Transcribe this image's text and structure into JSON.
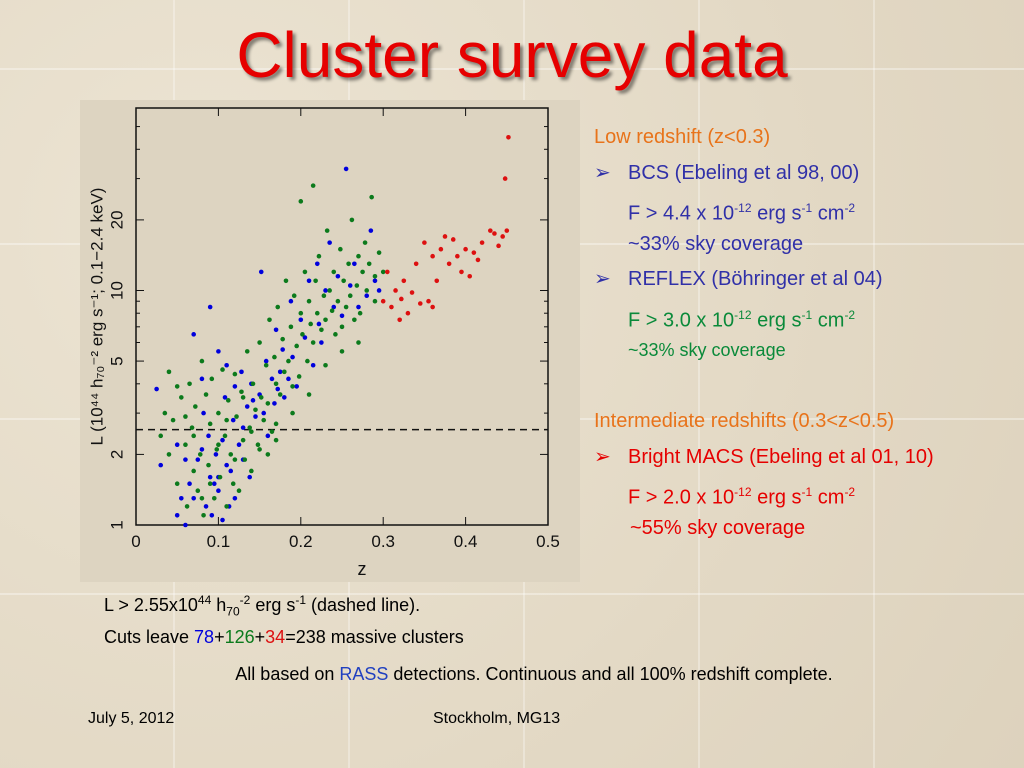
{
  "title": "Cluster survey data",
  "text": {
    "low_heading": "Low redshift (z<0.3)",
    "bcs_label": "BCS (Ebeling et al 98, 00)",
    "bcs_flux_prefix": "F > 4.4 x 10",
    "bcs_flux_exp": "-12",
    "bcs_coverage": "~33% sky coverage",
    "reflex_label": "REFLEX (Böhringer et al 04)",
    "reflex_flux_prefix": "F > 3.0 x 10",
    "reflex_flux_exp": "-12",
    "reflex_coverage": "~33% sky coverage",
    "inter_heading": "Intermediate redshifts (0.3<z<0.5)",
    "macs_label": "Bright MACS (Ebeling et al 01, 10)",
    "macs_flux_prefix": "F > 2.0 x 10",
    "macs_flux_exp": "-12",
    "macs_coverage": "~55% sky coverage",
    "flux_units": " erg s",
    "flux_units_exp1": "-1",
    "flux_units_cm": " cm",
    "flux_units_exp2": "-2",
    "bullet": "➢"
  },
  "caption": {
    "l_prefix": "L > 2.55x10",
    "l_exp": "44",
    "l_h": " h",
    "l_h_sub": "70",
    "l_h_exp": "-2",
    "l_units": " erg s",
    "l_units_exp": "-1",
    "l_suffix": " (dashed line).",
    "cuts_prefix": "Cuts leave ",
    "n_blue": "78",
    "plus1": "+",
    "n_green": "126",
    "plus2": "+",
    "n_red": "34",
    "cuts_suffix": "=238 massive clusters"
  },
  "footnote": {
    "prefix": "All based on ",
    "rass": "RASS",
    "suffix": " detections. Continuous and all 100% redshift complete."
  },
  "footer": {
    "date": "July 5, 2012",
    "place": "Stockholm, MG13"
  },
  "colors": {
    "blue": "#0000dd",
    "green": "#0c7a1c",
    "red": "#dd1010",
    "title": "#e60000"
  },
  "chart_data": {
    "type": "scatter",
    "x_axis_label": "z",
    "y_axis_label": "L (10⁴⁴ h₇₀⁻² erg s⁻¹; 0.1−2.4 keV)",
    "x_ticks": [
      "0",
      "0.1",
      "0.2",
      "0.3",
      "0.4",
      "0.5"
    ],
    "y_ticks": [
      "1",
      "2",
      "5",
      "10",
      "20"
    ],
    "xlim": [
      0,
      0.5
    ],
    "ylim": [
      1,
      60
    ],
    "y_scale": "log",
    "threshold_line": 2.55,
    "series": [
      {
        "color": "#0000dd",
        "points": [
          [
            0.025,
            3.8
          ],
          [
            0.03,
            1.8
          ],
          [
            0.05,
            1.1
          ],
          [
            0.05,
            2.2
          ],
          [
            0.055,
            1.3
          ],
          [
            0.06,
            1.0
          ],
          [
            0.065,
            1.5
          ],
          [
            0.07,
            1.3
          ],
          [
            0.07,
            6.5
          ],
          [
            0.075,
            1.9
          ],
          [
            0.08,
            4.2
          ],
          [
            0.08,
            2.1
          ],
          [
            0.082,
            3.0
          ],
          [
            0.085,
            1.2
          ],
          [
            0.088,
            2.4
          ],
          [
            0.09,
            1.6
          ],
          [
            0.09,
            8.5
          ],
          [
            0.092,
            1.1
          ],
          [
            0.095,
            1.5
          ],
          [
            0.097,
            2.0
          ],
          [
            0.1,
            5.5
          ],
          [
            0.1,
            1.4
          ],
          [
            0.105,
            2.3
          ],
          [
            0.105,
            1.05
          ],
          [
            0.108,
            3.5
          ],
          [
            0.11,
            1.8
          ],
          [
            0.11,
            4.8
          ],
          [
            0.113,
            1.2
          ],
          [
            0.115,
            1.7
          ],
          [
            0.118,
            2.8
          ],
          [
            0.12,
            1.3
          ],
          [
            0.12,
            3.9
          ],
          [
            0.125,
            2.2
          ],
          [
            0.128,
            4.5
          ],
          [
            0.13,
            1.9
          ],
          [
            0.13,
            2.6
          ],
          [
            0.135,
            3.2
          ],
          [
            0.138,
            1.6
          ],
          [
            0.14,
            4.0
          ],
          [
            0.142,
            3.4
          ],
          [
            0.145,
            2.9
          ],
          [
            0.15,
            3.6
          ],
          [
            0.152,
            12
          ],
          [
            0.155,
            3.0
          ],
          [
            0.158,
            5.0
          ],
          [
            0.16,
            2.4
          ],
          [
            0.165,
            4.2
          ],
          [
            0.168,
            3.3
          ],
          [
            0.17,
            6.8
          ],
          [
            0.172,
            3.8
          ],
          [
            0.175,
            4.5
          ],
          [
            0.178,
            5.6
          ],
          [
            0.18,
            3.5
          ],
          [
            0.185,
            4.2
          ],
          [
            0.188,
            9.0
          ],
          [
            0.19,
            5.2
          ],
          [
            0.195,
            3.9
          ],
          [
            0.2,
            7.5
          ],
          [
            0.205,
            6.3
          ],
          [
            0.21,
            11
          ],
          [
            0.215,
            4.8
          ],
          [
            0.22,
            13
          ],
          [
            0.222,
            7.2
          ],
          [
            0.225,
            6.0
          ],
          [
            0.23,
            10
          ],
          [
            0.235,
            16
          ],
          [
            0.24,
            8.5
          ],
          [
            0.245,
            11.5
          ],
          [
            0.25,
            7.8
          ],
          [
            0.255,
            33
          ],
          [
            0.26,
            10.5
          ],
          [
            0.265,
            13
          ],
          [
            0.27,
            8.5
          ],
          [
            0.28,
            9.5
          ],
          [
            0.285,
            18
          ],
          [
            0.29,
            11
          ],
          [
            0.295,
            10
          ],
          [
            0.06,
            1.9
          ],
          [
            0.1,
            1.6
          ]
        ]
      },
      {
        "color": "#0c7a1c",
        "points": [
          [
            0.03,
            2.4
          ],
          [
            0.035,
            3.0
          ],
          [
            0.04,
            4.5
          ],
          [
            0.045,
            2.8
          ],
          [
            0.05,
            1.5
          ],
          [
            0.055,
            3.5
          ],
          [
            0.06,
            2.2
          ],
          [
            0.062,
            1.2
          ],
          [
            0.065,
            4.0
          ],
          [
            0.068,
            2.6
          ],
          [
            0.07,
            1.7
          ],
          [
            0.072,
            3.2
          ],
          [
            0.075,
            1.4
          ],
          [
            0.078,
            2.0
          ],
          [
            0.08,
            5.0
          ],
          [
            0.082,
            1.1
          ],
          [
            0.085,
            3.6
          ],
          [
            0.088,
            1.8
          ],
          [
            0.09,
            2.7
          ],
          [
            0.092,
            4.2
          ],
          [
            0.095,
            1.3
          ],
          [
            0.098,
            2.1
          ],
          [
            0.1,
            3.0
          ],
          [
            0.102,
            1.6
          ],
          [
            0.105,
            4.6
          ],
          [
            0.108,
            2.4
          ],
          [
            0.11,
            1.2
          ],
          [
            0.112,
            3.4
          ],
          [
            0.115,
            2.0
          ],
          [
            0.118,
            1.5
          ],
          [
            0.12,
            4.4
          ],
          [
            0.122,
            2.9
          ],
          [
            0.125,
            1.4
          ],
          [
            0.128,
            3.7
          ],
          [
            0.13,
            2.3
          ],
          [
            0.132,
            1.9
          ],
          [
            0.135,
            5.5
          ],
          [
            0.138,
            2.6
          ],
          [
            0.14,
            1.7
          ],
          [
            0.142,
            4.0
          ],
          [
            0.145,
            3.1
          ],
          [
            0.148,
            2.2
          ],
          [
            0.15,
            6.0
          ],
          [
            0.152,
            3.5
          ],
          [
            0.155,
            2.8
          ],
          [
            0.158,
            4.8
          ],
          [
            0.16,
            3.3
          ],
          [
            0.162,
            7.5
          ],
          [
            0.165,
            2.5
          ],
          [
            0.168,
            5.2
          ],
          [
            0.17,
            4.0
          ],
          [
            0.172,
            8.5
          ],
          [
            0.175,
            3.6
          ],
          [
            0.178,
            6.2
          ],
          [
            0.18,
            4.5
          ],
          [
            0.182,
            11
          ],
          [
            0.185,
            5.0
          ],
          [
            0.188,
            7.0
          ],
          [
            0.19,
            3.9
          ],
          [
            0.192,
            9.5
          ],
          [
            0.195,
            5.8
          ],
          [
            0.198,
            4.3
          ],
          [
            0.2,
            8.0
          ],
          [
            0.202,
            6.5
          ],
          [
            0.205,
            12
          ],
          [
            0.208,
            5.0
          ],
          [
            0.21,
            9.0
          ],
          [
            0.212,
            7.2
          ],
          [
            0.215,
            6.0
          ],
          [
            0.218,
            11
          ],
          [
            0.22,
            8.0
          ],
          [
            0.222,
            14
          ],
          [
            0.225,
            6.8
          ],
          [
            0.228,
            9.5
          ],
          [
            0.23,
            7.5
          ],
          [
            0.232,
            18
          ],
          [
            0.235,
            10
          ],
          [
            0.238,
            8.2
          ],
          [
            0.24,
            12
          ],
          [
            0.242,
            6.5
          ],
          [
            0.245,
            9.0
          ],
          [
            0.248,
            15
          ],
          [
            0.25,
            7.0
          ],
          [
            0.252,
            11
          ],
          [
            0.255,
            8.5
          ],
          [
            0.258,
            13
          ],
          [
            0.26,
            9.5
          ],
          [
            0.262,
            20
          ],
          [
            0.265,
            7.5
          ],
          [
            0.268,
            10.5
          ],
          [
            0.27,
            14
          ],
          [
            0.272,
            8.0
          ],
          [
            0.275,
            12
          ],
          [
            0.278,
            16
          ],
          [
            0.28,
            10
          ],
          [
            0.283,
            13
          ],
          [
            0.286,
            25
          ],
          [
            0.29,
            11.5
          ],
          [
            0.295,
            14.5
          ],
          [
            0.3,
            12
          ],
          [
            0.215,
            28
          ],
          [
            0.2,
            24
          ],
          [
            0.04,
            2.0
          ],
          [
            0.06,
            2.9
          ],
          [
            0.08,
            1.3
          ],
          [
            0.1,
            2.2
          ],
          [
            0.12,
            1.9
          ],
          [
            0.14,
            2.5
          ],
          [
            0.16,
            2.0
          ],
          [
            0.05,
            3.9
          ],
          [
            0.07,
            2.4
          ],
          [
            0.09,
            1.5
          ],
          [
            0.11,
            2.8
          ],
          [
            0.13,
            3.5
          ],
          [
            0.15,
            2.1
          ],
          [
            0.17,
            2.7
          ],
          [
            0.19,
            3.0
          ],
          [
            0.21,
            3.6
          ],
          [
            0.23,
            4.8
          ],
          [
            0.25,
            5.5
          ],
          [
            0.27,
            6.0
          ],
          [
            0.29,
            9.0
          ],
          [
            0.17,
            2.3
          ]
        ]
      },
      {
        "color": "#dd1010",
        "points": [
          [
            0.3,
            9.0
          ],
          [
            0.305,
            12
          ],
          [
            0.31,
            8.5
          ],
          [
            0.315,
            10
          ],
          [
            0.32,
            7.5
          ],
          [
            0.322,
            9.2
          ],
          [
            0.325,
            11
          ],
          [
            0.33,
            8.0
          ],
          [
            0.335,
            9.8
          ],
          [
            0.34,
            13
          ],
          [
            0.345,
            8.8
          ],
          [
            0.35,
            16
          ],
          [
            0.355,
            9.0
          ],
          [
            0.36,
            14
          ],
          [
            0.365,
            11
          ],
          [
            0.37,
            15
          ],
          [
            0.375,
            17
          ],
          [
            0.38,
            13
          ],
          [
            0.385,
            16.5
          ],
          [
            0.39,
            14
          ],
          [
            0.395,
            12
          ],
          [
            0.4,
            15
          ],
          [
            0.405,
            11.5
          ],
          [
            0.41,
            14.5
          ],
          [
            0.415,
            13.5
          ],
          [
            0.42,
            16
          ],
          [
            0.43,
            18
          ],
          [
            0.435,
            17.5
          ],
          [
            0.44,
            15.5
          ],
          [
            0.445,
            17
          ],
          [
            0.45,
            18
          ],
          [
            0.448,
            30
          ],
          [
            0.452,
            45
          ],
          [
            0.36,
            8.5
          ]
        ]
      }
    ]
  }
}
